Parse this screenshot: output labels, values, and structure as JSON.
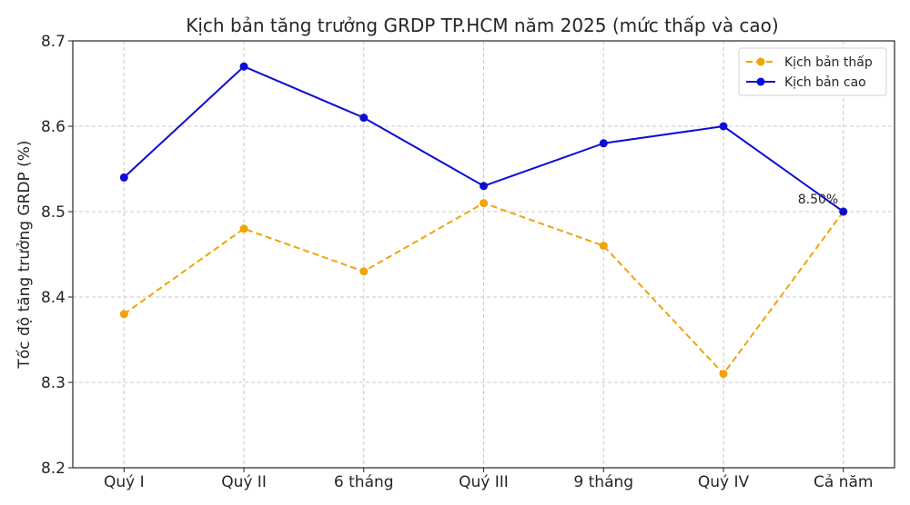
{
  "chart_data": {
    "type": "line",
    "title": "Kịch bản tăng trưởng GRDP TP.HCM năm 2025 (mức thấp và cao)",
    "xlabel": "",
    "ylabel": "Tốc độ tăng trưởng GRDP (%)",
    "categories": [
      "Quý I",
      "Quý II",
      "6 tháng",
      "Quý III",
      "9 tháng",
      "Quý IV",
      "Cả năm"
    ],
    "ylim": [
      8.2,
      8.7
    ],
    "yticks": [
      "8.2",
      "8.3",
      "8.4",
      "8.5",
      "8.6",
      "8.7"
    ],
    "grid": true,
    "legend_position": "top-right",
    "series": [
      {
        "name": "Kịch bản thấp",
        "values": [
          8.38,
          8.48,
          8.43,
          8.51,
          8.46,
          8.31,
          8.5
        ],
        "color": "#f0a30a",
        "style": "dashed"
      },
      {
        "name": "Kịch bản cao",
        "values": [
          8.54,
          8.67,
          8.61,
          8.53,
          8.58,
          8.6,
          8.5
        ],
        "color": "#0d0dd4",
        "style": "solid"
      }
    ],
    "annotations": [
      {
        "text": "8.50%",
        "category": "Cả năm",
        "value": 8.5
      }
    ]
  }
}
